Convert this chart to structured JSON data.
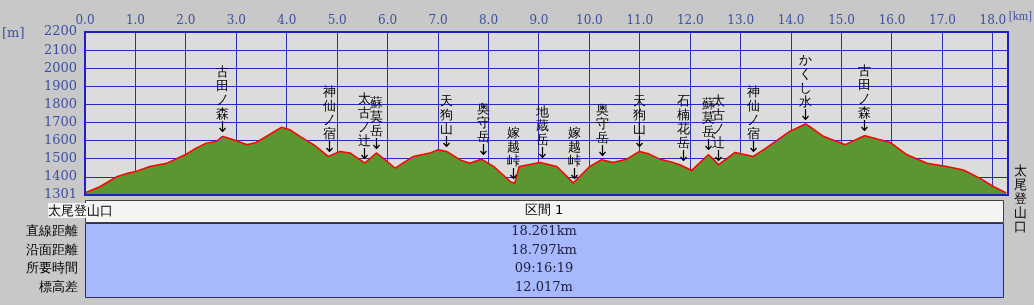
{
  "chart_data": {
    "type": "area",
    "xlabel": "[km]",
    "ylabel": "[m]",
    "xlim": [
      0,
      18.3
    ],
    "xticks": [
      {
        "value": 0,
        "label": "0.0"
      },
      {
        "value": 1,
        "label": "1.0"
      },
      {
        "value": 2,
        "label": "2.0"
      },
      {
        "value": 3,
        "label": "3.0"
      },
      {
        "value": 4,
        "label": "4.0"
      },
      {
        "value": 5,
        "label": "5.0"
      },
      {
        "value": 6,
        "label": "6.0"
      },
      {
        "value": 7,
        "label": "7.0"
      },
      {
        "value": 8,
        "label": "8.0"
      },
      {
        "value": 9,
        "label": "9.0"
      },
      {
        "value": 10,
        "label": "10.0"
      },
      {
        "value": 11,
        "label": "11.0"
      },
      {
        "value": 12,
        "label": "12.0"
      },
      {
        "value": 13,
        "label": "13.0"
      },
      {
        "value": 14,
        "label": "14.0"
      },
      {
        "value": 15,
        "label": "15.0"
      },
      {
        "value": 16,
        "label": "16.0"
      },
      {
        "value": 17,
        "label": "17.0"
      },
      {
        "value": 18,
        "label": "18.0"
      }
    ],
    "ylim": [
      1301,
      2200
    ],
    "yticks": [
      1301,
      1400,
      1500,
      1600,
      1700,
      1800,
      1900,
      2000,
      2100,
      2200
    ],
    "grid": true,
    "legend": false,
    "series": [
      {
        "color": "#5b9631",
        "x": [
          0,
          0.3,
          0.63,
          0.85,
          1.0,
          1.29,
          1.62,
          1.99,
          2.21,
          2.41,
          2.61,
          2.73,
          2.94,
          3.21,
          3.4,
          3.6,
          3.9,
          4.06,
          4.26,
          4.53,
          4.82,
          5.06,
          5.25,
          5.55,
          5.78,
          6.15,
          6.51,
          6.84,
          7.0,
          7.17,
          7.43,
          7.63,
          7.86,
          8.1,
          8.43,
          8.53,
          8.62,
          9.02,
          9.35,
          9.55,
          9.68,
          10.01,
          10.24,
          10.47,
          10.74,
          10.99,
          11.17,
          11.4,
          11.6,
          11.8,
          12.03,
          12.36,
          12.56,
          12.89,
          13.25,
          13.51,
          13.98,
          14.29,
          14.64,
          15.07,
          15.46,
          15.96,
          16.29,
          16.69,
          17.08,
          17.41,
          17.74,
          18.01,
          18.26
        ],
        "values": [
          1309,
          1343,
          1398,
          1417,
          1426,
          1454,
          1472,
          1519,
          1556,
          1583,
          1593,
          1620,
          1602,
          1574,
          1587,
          1620,
          1670,
          1657,
          1620,
          1574,
          1509,
          1537,
          1528,
          1472,
          1528,
          1444,
          1509,
          1528,
          1546,
          1537,
          1491,
          1472,
          1494,
          1454,
          1370,
          1361,
          1454,
          1476,
          1454,
          1398,
          1361,
          1454,
          1491,
          1476,
          1494,
          1537,
          1524,
          1494,
          1481,
          1463,
          1431,
          1519,
          1463,
          1531,
          1509,
          1556,
          1648,
          1689,
          1620,
          1574,
          1624,
          1587,
          1519,
          1472,
          1454,
          1435,
          1389,
          1343,
          1309
        ]
      },
      {
        "type": "line",
        "color": "#ff0000",
        "x": [
          0,
          0.3,
          0.63,
          0.85,
          1.0,
          1.29,
          1.62,
          1.99,
          2.21,
          2.41,
          2.61,
          2.73,
          2.94,
          3.21,
          3.4,
          3.6,
          3.9,
          4.06,
          4.26,
          4.53,
          4.82,
          5.06,
          5.25,
          5.55,
          5.78,
          6.15,
          6.51,
          6.84,
          7.0,
          7.17,
          7.43,
          7.63,
          7.86,
          8.1,
          8.43,
          8.53,
          8.62,
          9.02,
          9.35,
          9.55,
          9.68,
          10.01,
          10.24,
          10.47,
          10.74,
          10.99,
          11.17,
          11.4,
          11.6,
          11.8,
          12.03,
          12.36,
          12.56,
          12.89,
          13.25,
          13.51,
          13.98,
          14.29,
          14.64,
          15.07,
          15.46,
          15.96,
          16.29,
          16.69,
          17.08,
          17.41,
          17.74,
          18.01,
          18.26
        ],
        "values": [
          1309,
          1343,
          1398,
          1417,
          1426,
          1454,
          1472,
          1519,
          1556,
          1583,
          1593,
          1620,
          1602,
          1574,
          1587,
          1620,
          1670,
          1657,
          1620,
          1574,
          1509,
          1537,
          1528,
          1472,
          1528,
          1444,
          1509,
          1528,
          1546,
          1537,
          1491,
          1472,
          1494,
          1454,
          1370,
          1361,
          1454,
          1476,
          1454,
          1398,
          1361,
          1454,
          1491,
          1476,
          1494,
          1537,
          1524,
          1494,
          1481,
          1463,
          1431,
          1519,
          1463,
          1531,
          1509,
          1556,
          1648,
          1689,
          1620,
          1574,
          1624,
          1587,
          1519,
          1472,
          1454,
          1435,
          1389,
          1343,
          1309
        ]
      }
    ],
    "annotations": [
      {
        "text": "古田ノ森",
        "x": 2.73,
        "y": 1620
      },
      {
        "text": "神仙ノ宿",
        "x": 4.85,
        "y": 1509
      },
      {
        "text": "太古ノ辻",
        "x": 5.55,
        "y": 1472
      },
      {
        "text": "蘇莫岳",
        "x": 5.78,
        "y": 1528
      },
      {
        "text": "天狗山",
        "x": 7.17,
        "y": 1537
      },
      {
        "text": "奥守岳",
        "x": 7.9,
        "y": 1494
      },
      {
        "text": "嫁越峠",
        "x": 8.5,
        "y": 1361
      },
      {
        "text": "地蔵岳",
        "x": 9.08,
        "y": 1476
      },
      {
        "text": "嫁越峠",
        "x": 9.7,
        "y": 1361
      },
      {
        "text": "奥守岳",
        "x": 10.27,
        "y": 1491
      },
      {
        "text": "天狗山",
        "x": 10.99,
        "y": 1537
      },
      {
        "text": "石楠花岳",
        "x": 11.87,
        "y": 1463
      },
      {
        "text": "蘇莫岳",
        "x": 12.36,
        "y": 1519
      },
      {
        "text": "太古ノ辻",
        "x": 12.56,
        "y": 1463
      },
      {
        "text": "神仙ノ宿",
        "x": 13.25,
        "y": 1509
      },
      {
        "text": "かくし水",
        "x": 14.29,
        "y": 1689
      },
      {
        "text": "古田ノ森",
        "x": 15.46,
        "y": 1624
      },
      {
        "text": "太尾登山口",
        "x": 0,
        "y": 1309
      },
      {
        "text": "太尾登山口",
        "x": 18.26,
        "y": 1309
      },
      "区間 1",
      "直線距離",
      "18.261km",
      "沿面距離",
      "18.797km",
      "所要時間",
      "09:16:19",
      "標高差",
      "12.017m"
    ]
  }
}
